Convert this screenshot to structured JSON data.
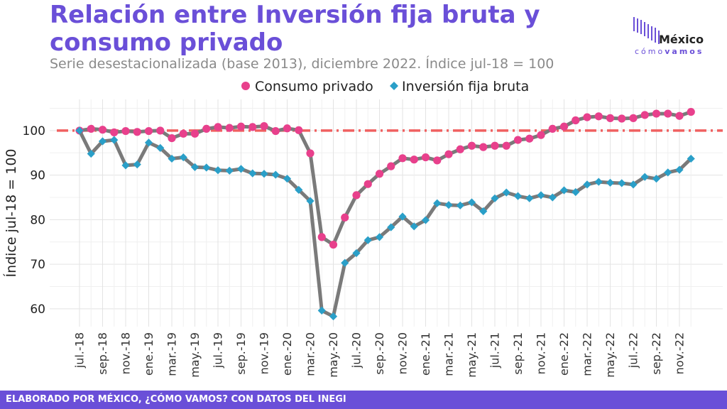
{
  "header": {
    "title_line1": "Relación entre Inversión fija bruta y",
    "title_line2": "consumo privado",
    "subtitle": "Serie desestacionalizada (base 2013), diciembre 2022. Índice jul-18 = 100"
  },
  "logo": {
    "brand": "México",
    "tag_light": "cómo",
    "tag_bold": "vamos"
  },
  "footer": {
    "text": "ELABORADO POR MÉXICO, ¿CÓMO VAMOS? CON DATOS DEL INEGI"
  },
  "colors": {
    "consumo": "#e8408c",
    "inversion": "#2a9fc8",
    "line": "#7a7a7a",
    "reference": "#f06060",
    "accent": "#6a4fd8"
  },
  "chart_data": {
    "type": "line",
    "ylabel": "Índice jul-18 = 100",
    "ylim": [
      56,
      107
    ],
    "yticks": [
      60,
      70,
      80,
      90,
      100
    ],
    "reference_line": 100,
    "legend_position": "top",
    "categories": [
      "jul.-18",
      "ago.-18",
      "sep.-18",
      "oct.-18",
      "nov.-18",
      "dic.-18",
      "ene.-19",
      "feb.-19",
      "mar.-19",
      "abr.-19",
      "may.-19",
      "jun.-19",
      "jul.-19",
      "ago.-19",
      "sep.-19",
      "oct.-19",
      "nov.-19",
      "dic.-19",
      "ene.-20",
      "feb.-20",
      "mar.-20",
      "abr.-20",
      "may.-20",
      "jun.-20",
      "jul.-20",
      "ago.-20",
      "sep.-20",
      "oct.-20",
      "nov.-20",
      "dic.-20",
      "ene.-21",
      "feb.-21",
      "mar.-21",
      "abr.-21",
      "may.-21",
      "jun.-21",
      "jul.-21",
      "ago.-21",
      "sep.-21",
      "oct.-21",
      "nov.-21",
      "dic.-21",
      "ene.-22",
      "feb.-22",
      "mar.-22",
      "abr.-22",
      "may.-22",
      "jun.-22",
      "jul.-22",
      "ago.-22",
      "sep.-22",
      "oct.-22",
      "nov.-22",
      "dic.-22"
    ],
    "xtick_labels": [
      "jul.-18",
      "sep.-18",
      "nov.-18",
      "ene.-19",
      "mar.-19",
      "may.-19",
      "jul.-19",
      "sep.-19",
      "nov.-19",
      "ene.-20",
      "mar.-20",
      "may.-20",
      "jul.-20",
      "sep.-20",
      "nov.-20",
      "ene.-21",
      "mar.-21",
      "may.-21",
      "jul.-21",
      "sep.-21",
      "nov.-21",
      "ene.-22",
      "mar.-22",
      "may.-22",
      "jul.-22",
      "sep.-22",
      "nov.-22"
    ],
    "series": [
      {
        "name": "Consumo privado",
        "marker": "circle",
        "values": [
          100,
          100.4,
          100.2,
          99.6,
          99.9,
          99.7,
          99.9,
          100,
          98.3,
          99.3,
          99.3,
          100.4,
          100.8,
          100.6,
          100.9,
          100.8,
          101,
          99.9,
          100.5,
          100.1,
          94.9,
          76.1,
          74.4,
          80.5,
          85.5,
          88,
          90.3,
          92,
          93.8,
          93.5,
          94,
          93.3,
          94.7,
          95.8,
          96.6,
          96.3,
          96.6,
          96.6,
          97.9,
          98.2,
          99,
          100.4,
          100.9,
          102.3,
          103,
          103.2,
          102.8,
          102.7,
          102.8,
          103.5,
          103.8,
          103.8,
          103.3,
          104.2
        ]
      },
      {
        "name": "Inversión fija bruta",
        "marker": "diamond",
        "values": [
          100,
          94.8,
          97.6,
          97.9,
          92.2,
          92.4,
          97.3,
          96.1,
          93.7,
          94,
          91.8,
          91.7,
          91.1,
          91,
          91.4,
          90.4,
          90.3,
          90.1,
          89.2,
          86.7,
          84.2,
          59.6,
          58.3,
          70.3,
          72.5,
          75.4,
          76.1,
          78.3,
          80.7,
          78.5,
          79.9,
          83.7,
          83.3,
          83.2,
          83.9,
          81.9,
          84.8,
          86.1,
          85.3,
          84.8,
          85.5,
          85,
          86.6,
          86.2,
          87.9,
          88.5,
          88.3,
          88.2,
          87.9,
          89.6,
          89.2,
          90.6,
          91.2,
          93.7
        ]
      }
    ]
  }
}
